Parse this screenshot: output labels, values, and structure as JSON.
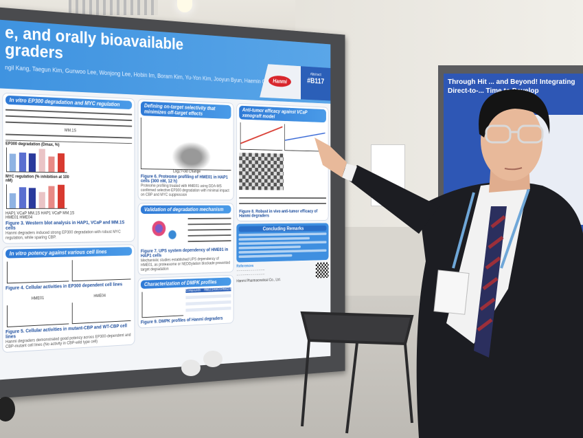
{
  "poster": {
    "title_line1": "e, and orally bioavailable",
    "title_line2": "graders",
    "authors": "ngil Kang, Taegun Kim, Gunwoo Lee, Wonjong Lee, Hobin Im, Boram Kim, Yu-Yon Kim, Jooyun Byun, Haemin Chon",
    "logo": "Hanmi",
    "abstract_label": "Abstract",
    "abstract_number": "#B117",
    "sections": {
      "ep300": "In vitro EP300 degradation and MYC regulation",
      "blot_label": "MM.1S",
      "chart1_title": "EP300 degradation (Dmax, %)",
      "chart2_title": "MYC regulation (% inhibition at 100 nM)",
      "cell_lines": "HAP1  VCaP  MM.1S  HAP1  VCaP  MM.1S",
      "compounds": "HME01          HME04",
      "fig3": "Figure 3. Western blot analysis in HAP1, VCaP and MM.1S cells",
      "fig3_text": "Hanmi degraders induced strong EP300 degradation with robust MYC regulation, while sparing CBP.",
      "potency": "In vitro potency against various cell lines",
      "fig4": "Figure 4. Cellular activities in EP300 dependent cell lines",
      "plot_hme01": "HME01",
      "plot_hme04": "HME04",
      "fig5": "Figure 5. Cellular activities in mutant-CBP and WT-CBP cell lines",
      "fig5_text": "Hanmi degraders demonstrated good potency across EP300-dependent and CBP-mutant cell lines (No activity in CBP-wild type cell)",
      "selectivity": "Defining on-target selectivity that minimizes off-target effects",
      "volcano_x": "Log2 Fold Change",
      "fig6": "Figure 6. Proteome profiling of HME01 in HAP1 cells (300 nM, 12 h)",
      "fig6_text": "Proteome profiling treated with HME01 using DDA-MS confirmed selective EP300 degradation with minimal impact on CBP and MYC suppression",
      "validation": "Validation of degradation mechanism",
      "fig7": "Figure 7. UPS system dependency of HME01 in HAP1 cells",
      "fig7_text": "Mechanistic studies established UPS dependency of HME01, as proteasome or NEDDylation blockade prevented target degradation",
      "dmpk": "Characterization of DMPK profiles",
      "table_cols": [
        "Compounds",
        "HME01",
        "HME02",
        "HME04"
      ],
      "fig9": "Figure 9. DMPK profiles of Hanmi degraders",
      "efficacy": "Anti-tumor efficacy against VCaP xenograft model",
      "fig8": "Figure 8. Robust in vivo anti-tumor efficacy of Hanmi degraders",
      "concluding": "Concluding Remarks",
      "references": "References",
      "company": "Hanmi Pharmaceutical Co., Ltd."
    },
    "chart_ep300": [
      {
        "line": "HAP1",
        "v": 75,
        "c": "#8fb3e3"
      },
      {
        "line": "VCaP",
        "v": 80,
        "c": "#5a6fd0"
      },
      {
        "line": "MM.1S",
        "v": 78,
        "c": "#2a3a9c"
      },
      {
        "line": "HAP1",
        "v": 97,
        "c": "#eac4c6"
      },
      {
        "line": "VCaP",
        "v": 67,
        "c": "#e88a86"
      },
      {
        "line": "MM.1S",
        "v": 80,
        "c": "#d83a30"
      }
    ],
    "chart_myc": [
      {
        "line": "HAP1",
        "v": 63,
        "c": "#8fb3e3"
      },
      {
        "line": "VCaP",
        "v": 88,
        "c": "#5a6fd0"
      },
      {
        "line": "MM.1S",
        "v": 85,
        "c": "#2a3a9c"
      },
      {
        "line": "HAP1",
        "v": 70,
        "c": "#eac4c6"
      },
      {
        "line": "VCaP",
        "v": 95,
        "c": "#e88a86"
      },
      {
        "line": "MM.1S",
        "v": 100,
        "c": "#d83a30"
      }
    ]
  },
  "background_poster": {
    "title": "Through Hit ... and Beyond! Integrating Direct-to-... Time to Develop",
    "key": "Key Scre..."
  },
  "colors": {
    "poster_blue": "#3f93e0",
    "hanmi_red": "#d8262c",
    "suit": "#1c1d22",
    "tie_navy": "#2b2f5e",
    "tie_red": "#9c2f3a"
  }
}
